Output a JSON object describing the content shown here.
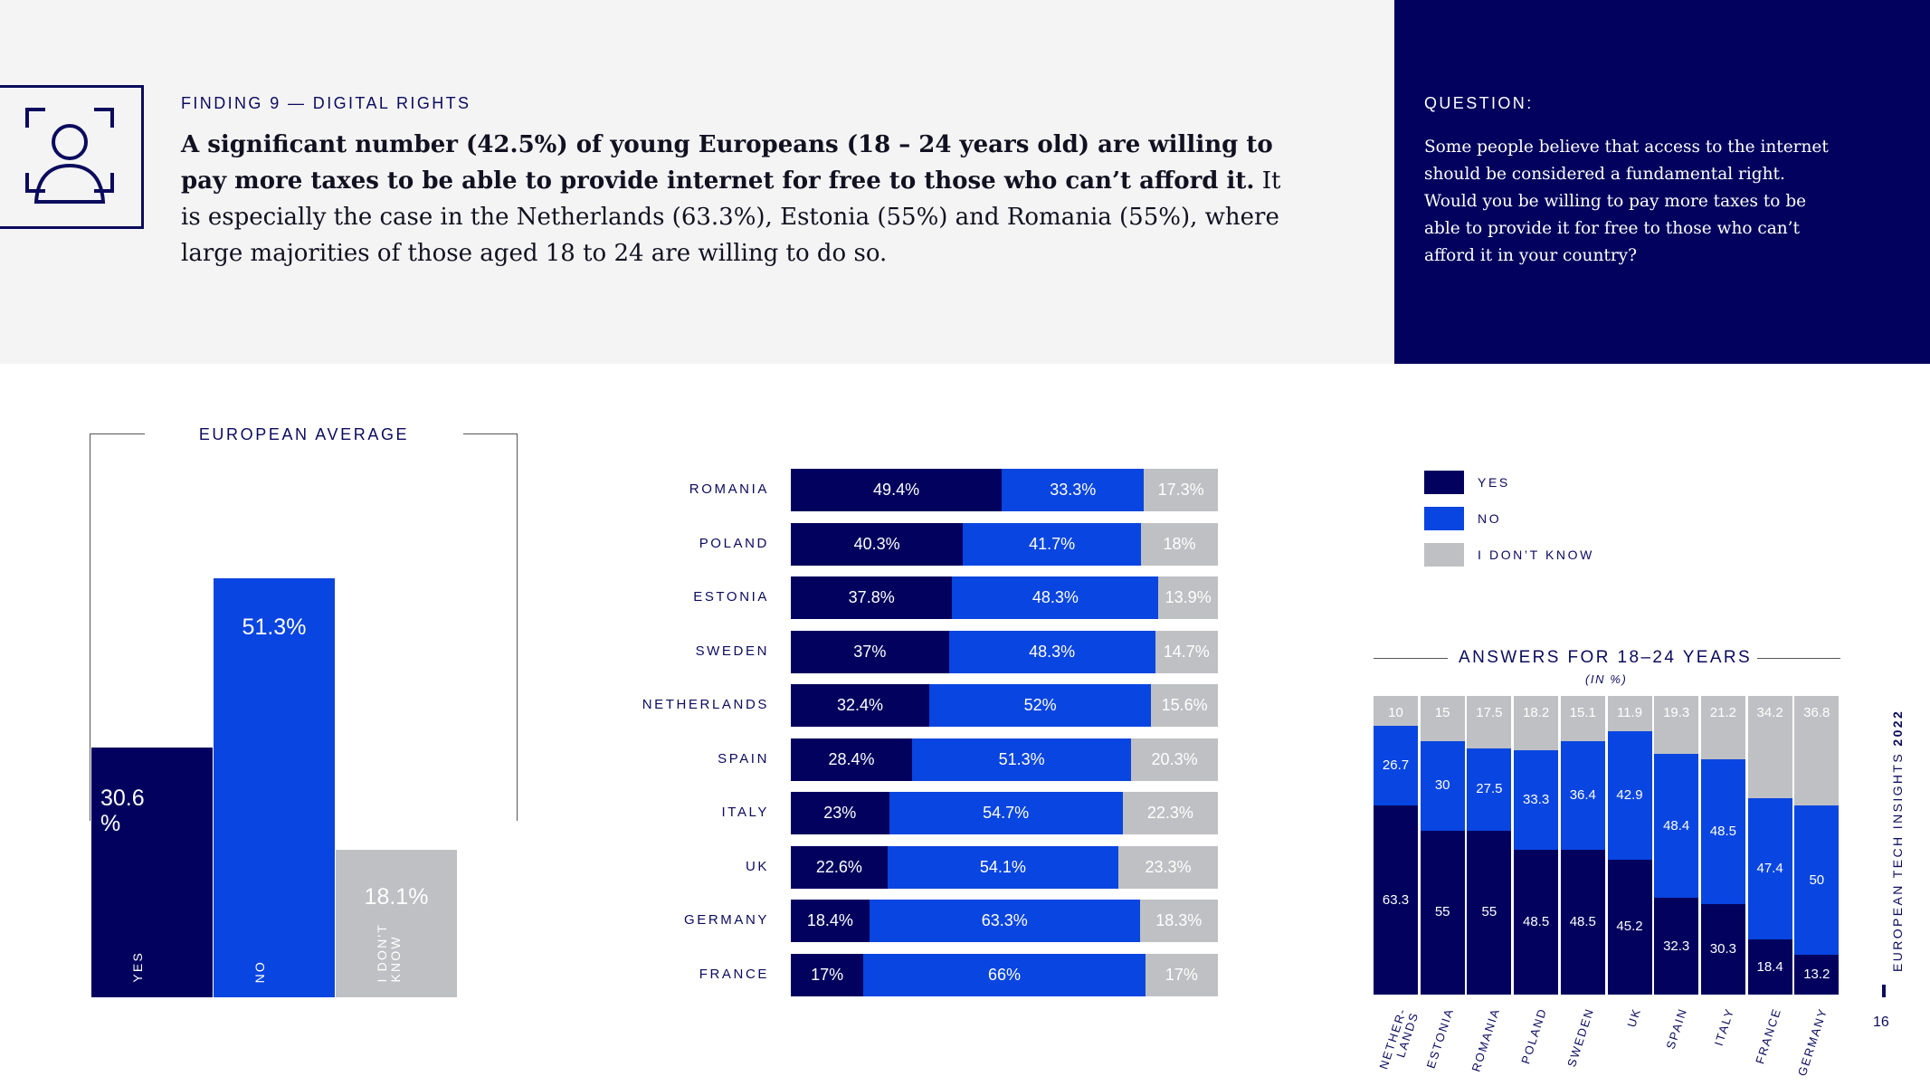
{
  "header": {
    "finding_label": "FINDING 9 — DIGITAL RIGHTS",
    "finding_bold": "A significant number (42.5%) of young Europeans (18 – 24 years old) are willing to pay more taxes to be able to provide internet for free to those who can’t afford it.",
    "finding_rest": " It is especially the case in the Netherlands (63.3%), Estonia (55%) and Romania (55%), where large majorities of those aged 18 to 24 are willing to do so.",
    "question_label": "QUESTION:",
    "question_text": "Some people believe that access to the internet should be considered a fundamental right. Would you be willing to pay more taxes to be able to provide it for free to those who can’t afford it in your country?",
    "icon": "person-frame-icon"
  },
  "colors": {
    "yes": "#02025e",
    "no": "#0945e0",
    "dont_know": "#bfc0c3",
    "panel": "#02025e",
    "band": "#f4f4f4"
  },
  "side": {
    "title_pre": "EUROPEAN TECH INSIGHTS",
    "title_year": "2022",
    "page_number": "16"
  },
  "legend": [
    "YES",
    "NO",
    "I DON’T KNOW"
  ],
  "chart_data": [
    {
      "type": "bar",
      "title": "EUROPEAN AVERAGE",
      "categories": [
        "YES",
        "NO",
        "I DON'T KNOW"
      ],
      "values": [
        30.6,
        51.3,
        18.1
      ],
      "value_labels": [
        "30.6 %",
        "51.3%",
        "18.1%"
      ],
      "category_labels": [
        "YES",
        "NO",
        "I DON'T KNOW"
      ]
    },
    {
      "type": "bar",
      "orientation": "horizontal-stacked-100",
      "categories": [
        "ROMANIA",
        "POLAND",
        "ESTONIA",
        "SWEDEN",
        "NETHERLANDS",
        "SPAIN",
        "ITALY",
        "UK",
        "GERMANY",
        "FRANCE"
      ],
      "series": [
        {
          "name": "YES",
          "values": [
            49.4,
            40.3,
            37.8,
            37,
            32.4,
            28.4,
            23,
            22.6,
            18.4,
            17
          ]
        },
        {
          "name": "NO",
          "values": [
            33.3,
            41.7,
            48.3,
            48.3,
            52,
            51.3,
            54.7,
            54.1,
            63.3,
            66
          ]
        },
        {
          "name": "I DON’T KNOW",
          "values": [
            17.3,
            18,
            13.9,
            14.7,
            15.6,
            20.3,
            22.3,
            23.3,
            18.3,
            17
          ]
        }
      ],
      "labels": [
        [
          "49.4%",
          "33.3%",
          "17.3%"
        ],
        [
          "40.3%",
          "41.7%",
          "18%"
        ],
        [
          "37.8%",
          "48.3%",
          "13.9%"
        ],
        [
          "37%",
          "48.3%",
          "14.7%"
        ],
        [
          "32.4%",
          "52%",
          "15.6%"
        ],
        [
          "28.4%",
          "51.3%",
          "20.3%"
        ],
        [
          "23%",
          "54.7%",
          "22.3%"
        ],
        [
          "22.6%",
          "54.1%",
          "23.3%"
        ],
        [
          "18.4%",
          "63.3%",
          "18.3%"
        ],
        [
          "17%",
          "66%",
          "17%"
        ]
      ]
    },
    {
      "type": "bar",
      "orientation": "vertical-stacked-100",
      "title": "ANSWERS FOR 18–24 YEARS",
      "subtitle": "(IN %)",
      "categories": [
        "NETHER-LANDS",
        "ESTONIA",
        "ROMANIA",
        "POLAND",
        "SWEDEN",
        "UK",
        "SPAIN",
        "ITALY",
        "FRANCE",
        "GERMANY"
      ],
      "series": [
        {
          "name": "YES",
          "values": [
            63.3,
            55,
            55,
            48.5,
            48.5,
            45.2,
            32.3,
            30.3,
            18.4,
            13.2
          ]
        },
        {
          "name": "NO",
          "values": [
            26.7,
            30,
            27.5,
            33.3,
            36.4,
            42.9,
            48.4,
            48.5,
            47.4,
            50
          ]
        },
        {
          "name": "I DON’T KNOW",
          "values": [
            10,
            15,
            17.5,
            18.2,
            15.1,
            11.9,
            19.3,
            21.2,
            34.2,
            36.8
          ]
        }
      ]
    }
  ]
}
